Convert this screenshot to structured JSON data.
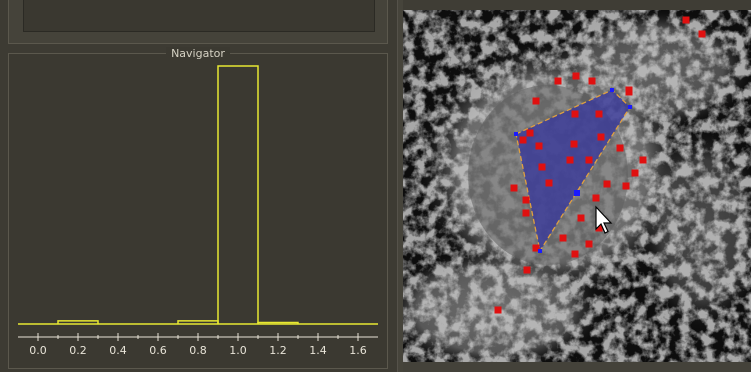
{
  "navigator": {
    "title": "Navigator"
  },
  "chart_data": {
    "type": "bar",
    "x_ticks": [
      "0.0",
      "0.2",
      "0.4",
      "0.6",
      "0.8",
      "1.0",
      "1.2",
      "1.4",
      "1.6"
    ],
    "xlim": [
      -0.1,
      1.7
    ],
    "ylim": [
      0,
      1.0
    ],
    "bins": [
      {
        "x0": 0.1,
        "x1": 0.3,
        "value": 0.012
      },
      {
        "x0": 0.7,
        "x1": 0.9,
        "value": 0.012
      },
      {
        "x0": 0.9,
        "x1": 1.1,
        "value": 1.0
      },
      {
        "x0": 1.1,
        "x1": 1.3,
        "value": 0.006
      }
    ],
    "bar_color": "#e8e832",
    "axis_color": "#e8e4d8"
  },
  "canvas": {
    "point_color": "#e01010",
    "vertex_color": "#1a1aff",
    "polygon_fill": "#3a3a9a",
    "polygon_edge_color": "#e0a040",
    "cursor": "arrow-cursor-icon"
  }
}
